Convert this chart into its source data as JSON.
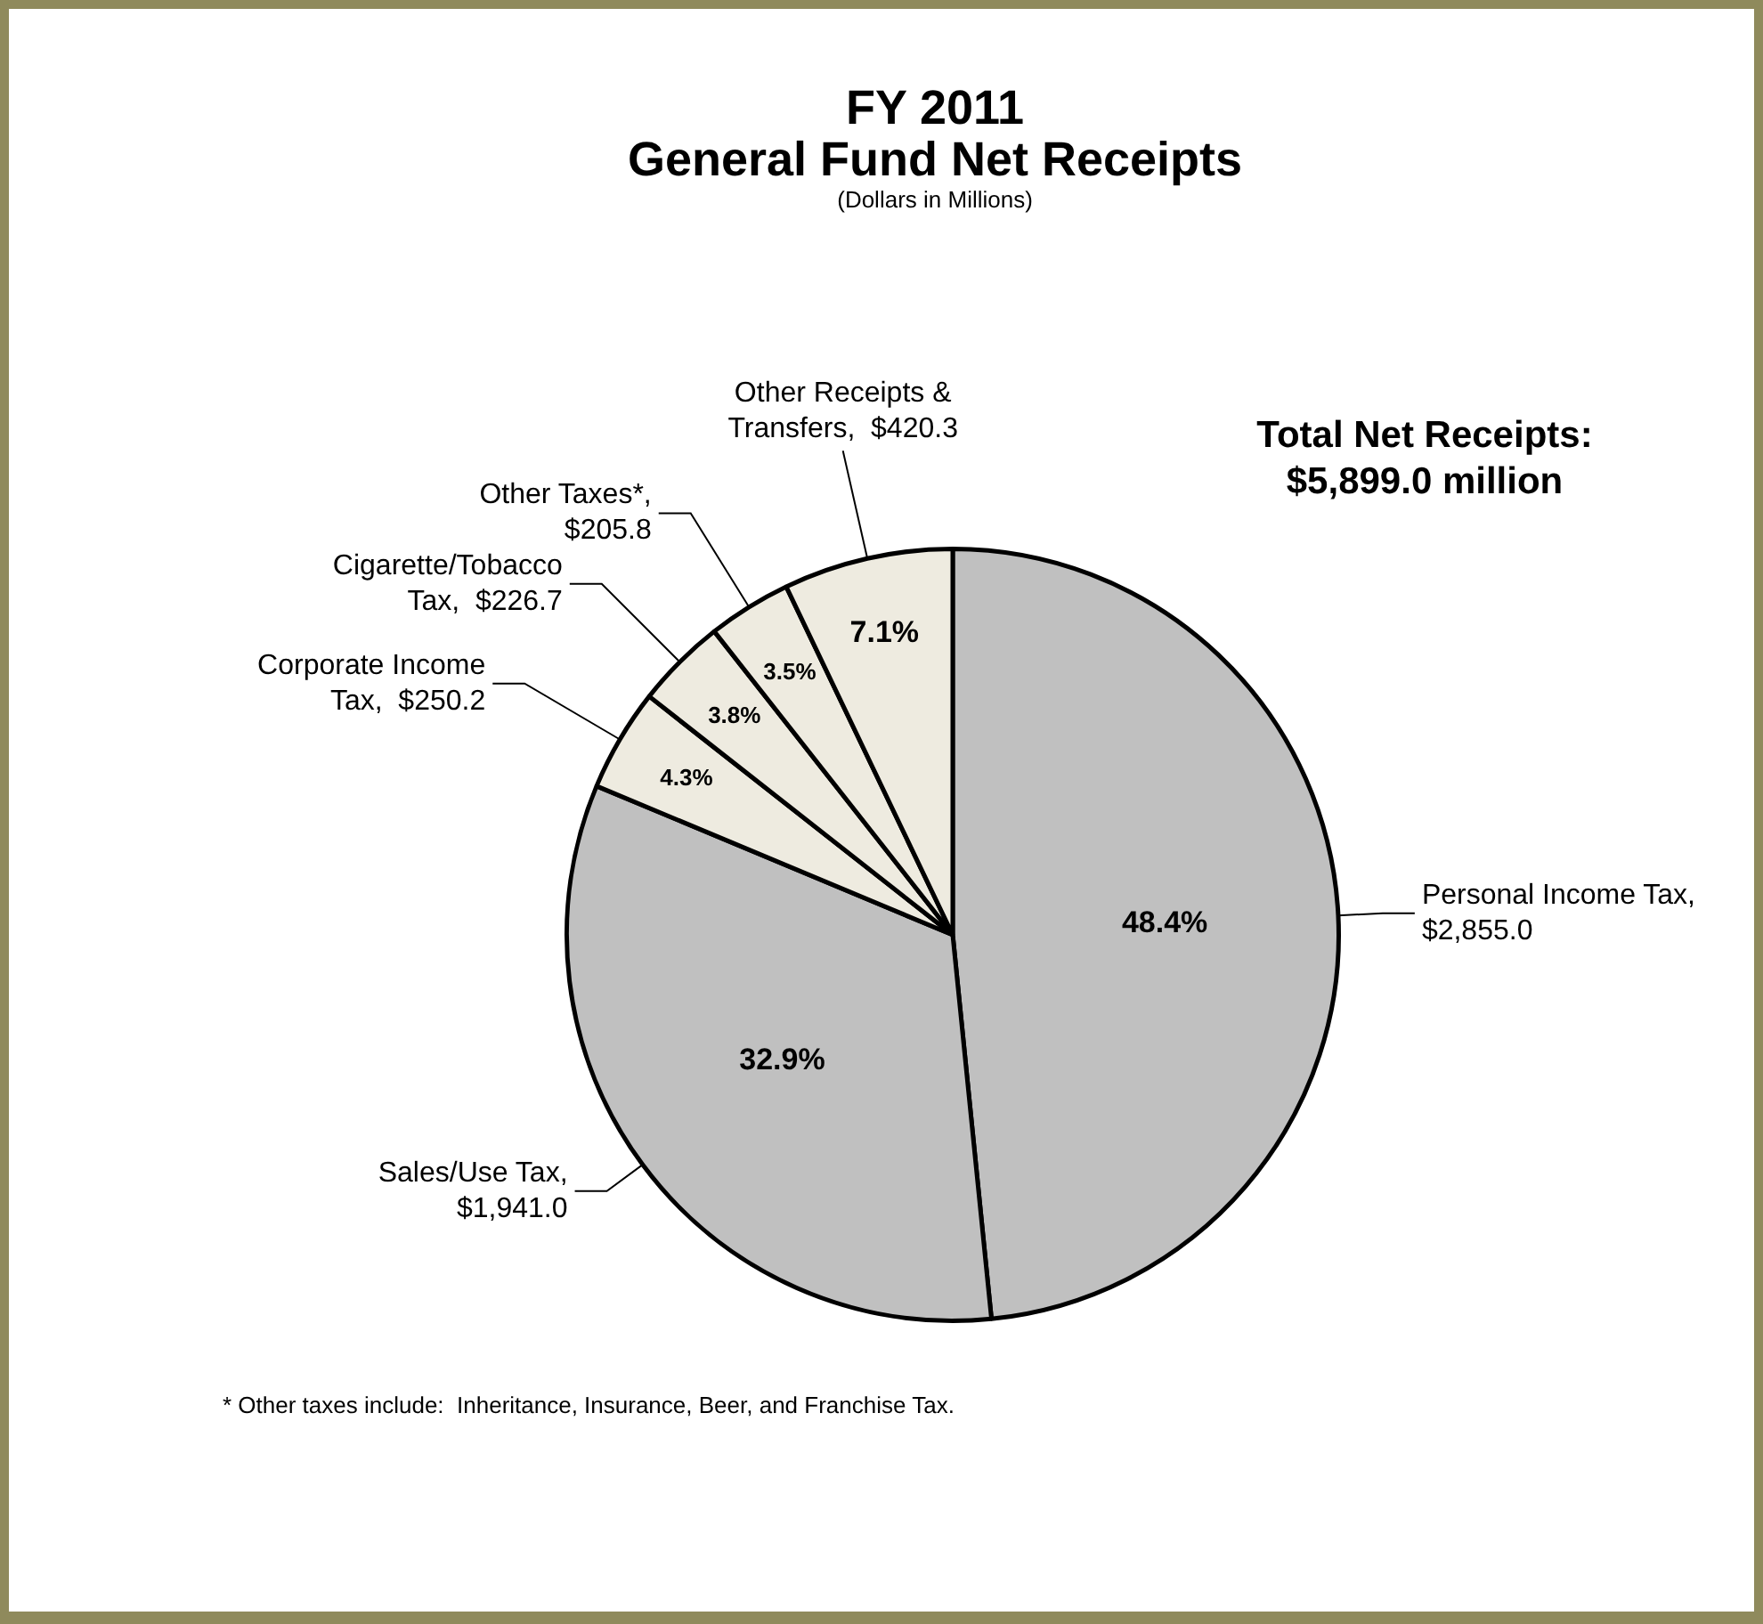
{
  "chart_data": {
    "type": "pie",
    "title": "FY 2011\nGeneral Fund Net Receipts",
    "subtitle": "(Dollars in Millions)",
    "categories": [
      "Personal Income Tax,\n$2,855.0",
      "Sales/Use Tax,\n$1,941.0",
      "Corporate Income\nTax,  $250.2",
      "Cigarette/Tobacco\nTax,  $226.7",
      "Other Taxes*,\n$205.8",
      "Other Receipts &\nTransfers,  $420.3"
    ],
    "values": [
      48.4,
      32.9,
      4.3,
      3.8,
      3.5,
      7.1
    ],
    "value_labels": [
      "48.4%",
      "32.9%",
      "4.3%",
      "3.8%",
      "3.5%",
      "7.1%"
    ],
    "colors": [
      "#c0c0c0",
      "#c0c0c0",
      "#eeebe0",
      "#eeebe0",
      "#eeebe0",
      "#eeebe0"
    ],
    "annotations": [
      "Total Net Receipts:\n$5,899.0 million",
      "* Other taxes include:  Inheritance, Insurance, Beer, and Franchise Tax."
    ],
    "legend": false
  }
}
